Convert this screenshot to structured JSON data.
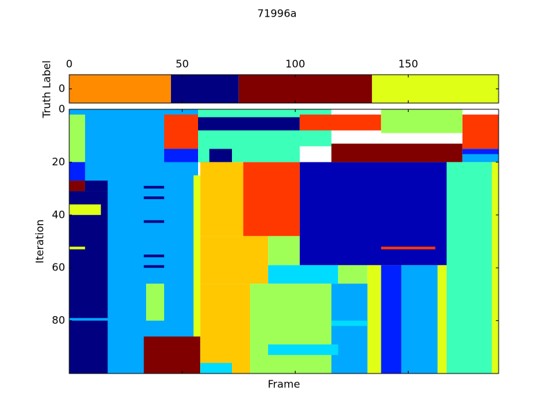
{
  "chart_data": {
    "type": "heatmap",
    "title": "71996a",
    "xlabel": "Frame",
    "ylabel": "Iteration",
    "xlim": [
      0,
      190
    ],
    "xticks": [
      0,
      50,
      100,
      150
    ],
    "ylim": [
      0,
      100
    ],
    "yticks": [
      0,
      20,
      40,
      60,
      80
    ],
    "palette": [
      "#000080",
      "#0000b4",
      "#0020ff",
      "#00a8ff",
      "#00dcff",
      "#3cffba",
      "#a0ff56",
      "#e0ff16",
      "#ffc800",
      "#ff8c00",
      "#ff3800",
      "#800000"
    ],
    "truth": {
      "ylabel": "Truth Label",
      "ylim": [
        -0.5,
        0.5
      ],
      "yticks": [
        0
      ],
      "segments": [
        [
          0,
          45,
          9
        ],
        [
          45,
          75,
          0
        ],
        [
          75,
          134,
          11
        ],
        [
          134,
          190,
          7
        ]
      ]
    },
    "blocks": [
      [
        0,
        57,
        0,
        100,
        3
      ],
      [
        0,
        7,
        2,
        20,
        6
      ],
      [
        0,
        7,
        20,
        27,
        2
      ],
      [
        0,
        17,
        31,
        100,
        0
      ],
      [
        0,
        7,
        27,
        31,
        11
      ],
      [
        7,
        17,
        27,
        31,
        0
      ],
      [
        0,
        14,
        36,
        40,
        7
      ],
      [
        0,
        7,
        52,
        53,
        7
      ],
      [
        0,
        17,
        79,
        80,
        3
      ],
      [
        33,
        42,
        29,
        30,
        0
      ],
      [
        33,
        42,
        33,
        34,
        0
      ],
      [
        33,
        42,
        42,
        43,
        0
      ],
      [
        33,
        42,
        55,
        56,
        0
      ],
      [
        33,
        42,
        59,
        60,
        0
      ],
      [
        34,
        42,
        66,
        80,
        6
      ],
      [
        55,
        58,
        25,
        100,
        7
      ],
      [
        33,
        58,
        86,
        100,
        11
      ],
      [
        42,
        57,
        2,
        15,
        10
      ],
      [
        42,
        62,
        15,
        20,
        2
      ],
      [
        57,
        116,
        0,
        3,
        5
      ],
      [
        57,
        102,
        3,
        8,
        0
      ],
      [
        57,
        116,
        8,
        14,
        5
      ],
      [
        57,
        102,
        14,
        20,
        5
      ],
      [
        62,
        72,
        15,
        20,
        0
      ],
      [
        58,
        77,
        20,
        48,
        8
      ],
      [
        77,
        102,
        20,
        48,
        10
      ],
      [
        58,
        88,
        48,
        66,
        8
      ],
      [
        88,
        102,
        48,
        59,
        6
      ],
      [
        102,
        167,
        20,
        59,
        1
      ],
      [
        102,
        138,
        2,
        8,
        10
      ],
      [
        138,
        174,
        0,
        9,
        6
      ],
      [
        116,
        174,
        13,
        20,
        11
      ],
      [
        102,
        116,
        8,
        14,
        5
      ],
      [
        174,
        190,
        2,
        15,
        10
      ],
      [
        174,
        190,
        15,
        17,
        2
      ],
      [
        174,
        190,
        17,
        20,
        3
      ],
      [
        167,
        190,
        20,
        100,
        5
      ],
      [
        187,
        190,
        20,
        100,
        7
      ],
      [
        88,
        119,
        59,
        66,
        4
      ],
      [
        119,
        132,
        59,
        66,
        6
      ],
      [
        58,
        80,
        66,
        100,
        8
      ],
      [
        80,
        116,
        66,
        100,
        6
      ],
      [
        116,
        132,
        66,
        100,
        3
      ],
      [
        132,
        138,
        59,
        100,
        7
      ],
      [
        138,
        147,
        59,
        100,
        2
      ],
      [
        147,
        163,
        59,
        100,
        3
      ],
      [
        163,
        167,
        59,
        100,
        7
      ],
      [
        88,
        119,
        89,
        93,
        4
      ],
      [
        58,
        72,
        96,
        100,
        4
      ],
      [
        138,
        162,
        52,
        53,
        10
      ],
      [
        116,
        132,
        80,
        82,
        4
      ]
    ]
  }
}
